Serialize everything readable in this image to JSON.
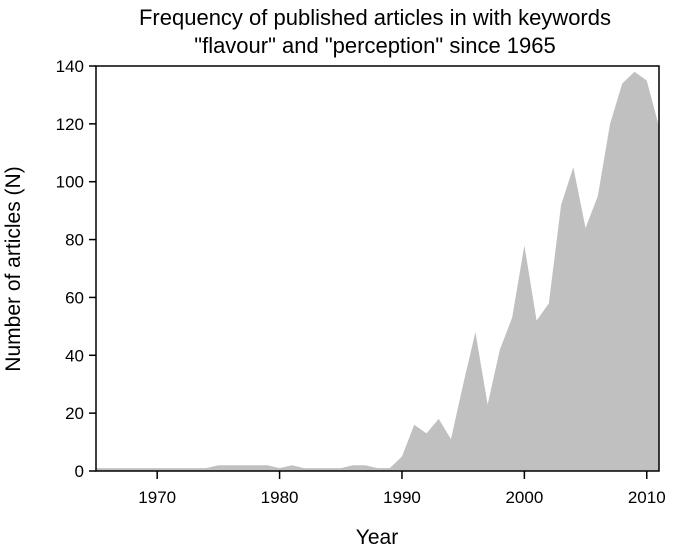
{
  "chart_data": {
    "type": "area",
    "title_lines": [
      "Frequency of published articles in with keywords",
      "\"flavour\" and \"perception\" since 1965"
    ],
    "xlabel": "Year",
    "ylabel": "Number of articles (N)",
    "xlim": [
      1965,
      2011
    ],
    "ylim": [
      0,
      140
    ],
    "xticks": [
      1970,
      1980,
      1990,
      2000,
      2010
    ],
    "yticks": [
      0,
      20,
      40,
      60,
      80,
      100,
      120,
      140
    ],
    "grid": false,
    "fill_color": "#c0c0c0",
    "series": [
      {
        "x": [
          1965,
          1966,
          1967,
          1968,
          1969,
          1970,
          1971,
          1972,
          1973,
          1974,
          1975,
          1976,
          1977,
          1978,
          1979,
          1980,
          1981,
          1982,
          1983,
          1984,
          1985,
          1986,
          1987,
          1988,
          1989,
          1990,
          1991,
          1992,
          1993,
          1994,
          1995,
          1996,
          1997,
          1998,
          1999,
          2000,
          2001,
          2002,
          2003,
          2004,
          2005,
          2006,
          2007,
          2008,
          2009,
          2010,
          2011
        ],
        "values": [
          1,
          1,
          1,
          1,
          1,
          1,
          1,
          1,
          1,
          1,
          2,
          2,
          2,
          2,
          2,
          1,
          2,
          1,
          1,
          1,
          1,
          2,
          2,
          1,
          1,
          5,
          16,
          13,
          18,
          11,
          30,
          48,
          23,
          42,
          53,
          78,
          52,
          58,
          92,
          105,
          84,
          95,
          120,
          134,
          138,
          135,
          119
        ]
      }
    ]
  }
}
